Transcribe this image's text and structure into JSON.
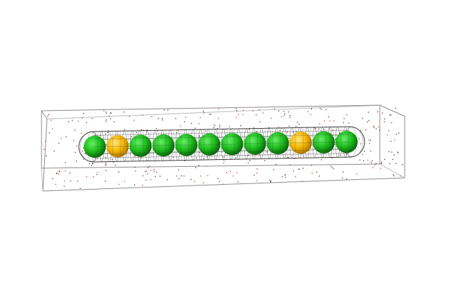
{
  "scene": {
    "background": "#ffffff",
    "box_edge_color": "#8a8a8a",
    "particle_colors": [
      "#c0392b",
      "#7a1f1f",
      "#333333"
    ],
    "capsule_wire_color": "#3a3a3a",
    "sphere_sequence": [
      "green",
      "yellow",
      "green",
      "green",
      "green",
      "green",
      "green",
      "green",
      "green",
      "yellow",
      "green",
      "green"
    ],
    "sphere_colors": {
      "green": {
        "light": "#66ee66",
        "mid": "#1fbf1f",
        "dark": "#0a6a0a"
      },
      "yellow": {
        "light": "#ffe680",
        "mid": "#f5b800",
        "dark": "#b07800"
      }
    }
  }
}
